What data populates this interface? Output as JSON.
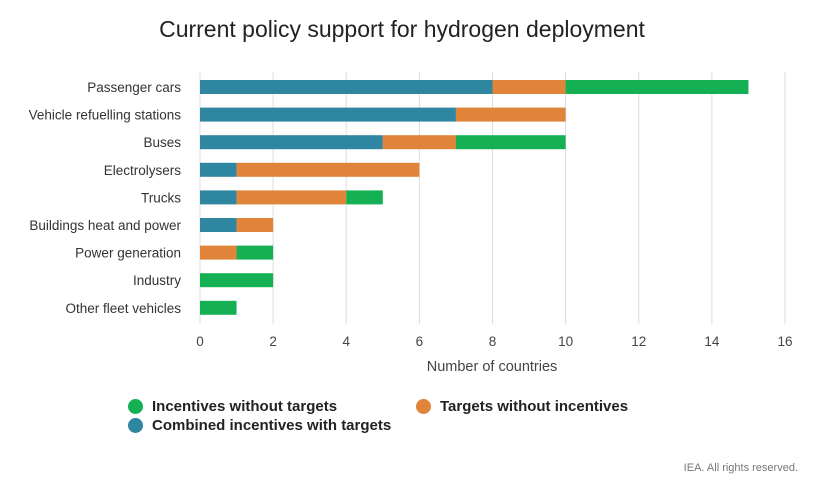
{
  "chart_data": {
    "type": "bar",
    "orientation": "horizontal",
    "stacked": true,
    "title": "Current policy support for hydrogen deployment",
    "xlabel": "Number of countries",
    "ylabel": "",
    "xlim": [
      0,
      16
    ],
    "xticks": [
      0,
      2,
      4,
      6,
      8,
      10,
      12,
      14,
      16
    ],
    "grid": true,
    "categories": [
      "Passenger cars",
      "Vehicle refuelling stations",
      "Buses",
      "Electrolysers",
      "Trucks",
      "Buildings heat and power",
      "Power generation",
      "Industry",
      "Other fleet vehicles"
    ],
    "series": [
      {
        "name": "Combined incentives with targets",
        "color": "#2e86a0",
        "values": [
          8,
          7,
          5,
          1,
          1,
          1,
          0,
          0,
          0
        ]
      },
      {
        "name": "Targets without incentives",
        "color": "#e0843a",
        "values": [
          2,
          3,
          2,
          5,
          3,
          1,
          1,
          0,
          0
        ]
      },
      {
        "name": "Incentives without targets",
        "color": "#14b053",
        "values": [
          5,
          0,
          3,
          0,
          1,
          0,
          1,
          2,
          1
        ]
      }
    ],
    "legend": [
      {
        "label": "Incentives without targets",
        "color": "#14b053"
      },
      {
        "label": "Targets without incentives",
        "color": "#e0843a"
      },
      {
        "label": "Combined incentives with targets",
        "color": "#2e86a0"
      }
    ],
    "legend_position": "bottom"
  },
  "credit": "IEA. All rights reserved."
}
